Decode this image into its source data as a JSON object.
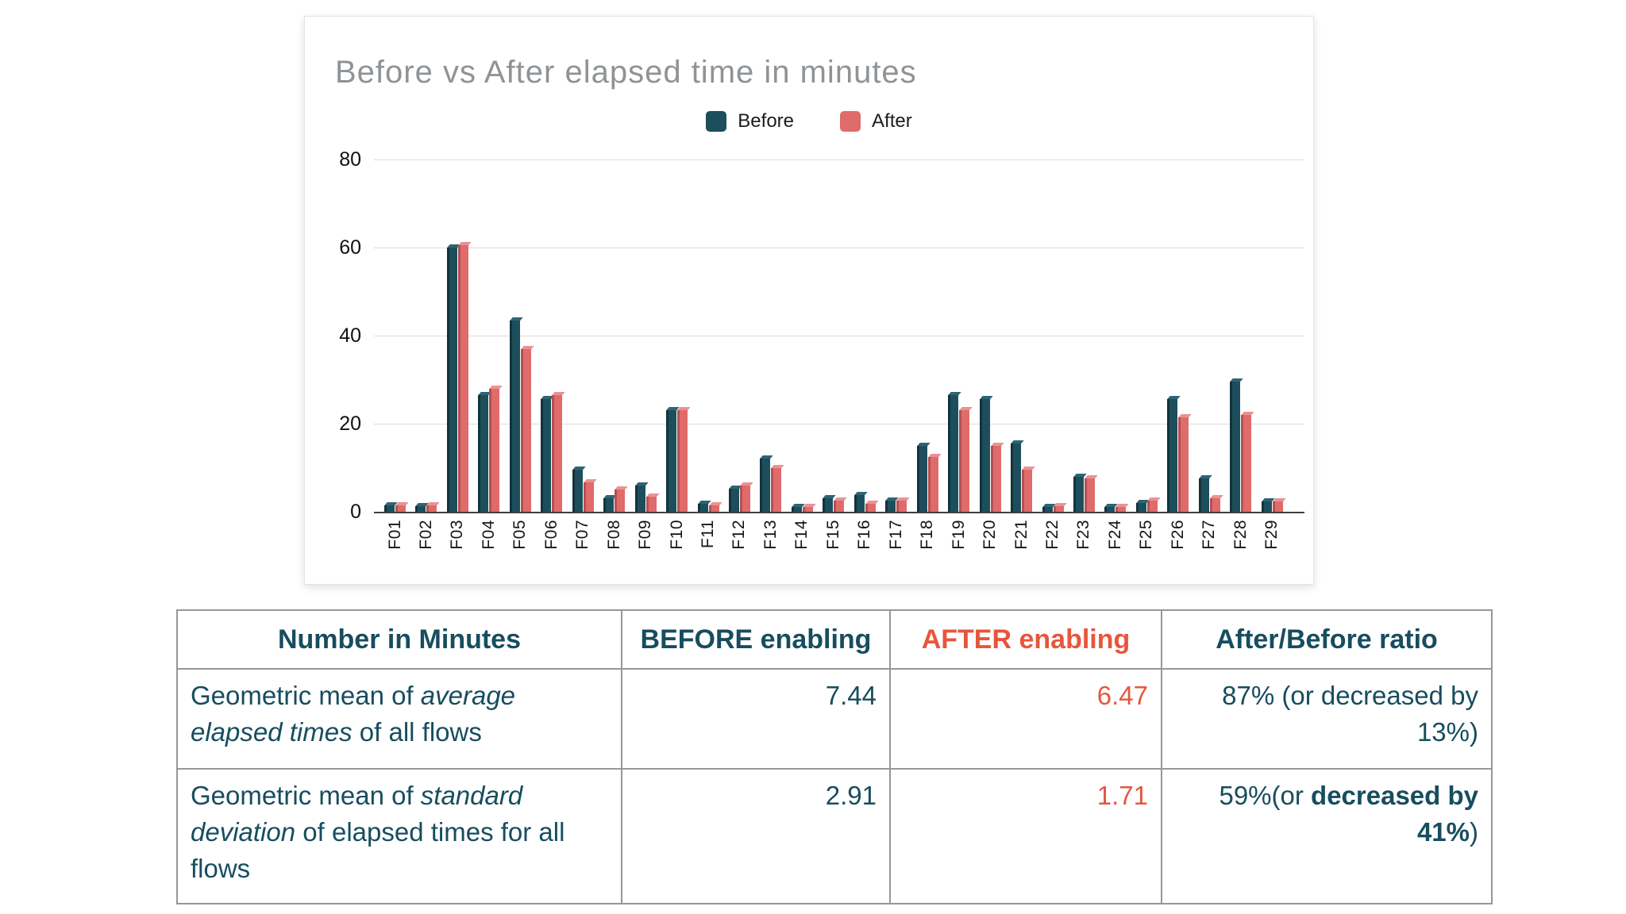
{
  "chart": {
    "title": "Before vs After elapsed time in minutes",
    "legend": [
      {
        "label": "Before",
        "color": "#1d4e5c",
        "edge": "#13333d",
        "cap": "#2e6474"
      },
      {
        "label": "After",
        "color": "#df6b6b",
        "edge": "#b35151",
        "cap": "#ea9292"
      }
    ]
  },
  "chart_data": {
    "type": "bar",
    "title": "Before vs After elapsed time in minutes",
    "xlabel": "",
    "ylabel": "",
    "ylim": [
      0,
      80
    ],
    "yticks": [
      80,
      60,
      40,
      20,
      0
    ],
    "grid": true,
    "legend_position": "top",
    "categories": [
      "F01",
      "F02",
      "F03",
      "F04",
      "F05",
      "F06",
      "F07",
      "F08",
      "F09",
      "F10",
      "F11",
      "F12",
      "F13",
      "F14",
      "F15",
      "F16",
      "F17",
      "F18",
      "F19",
      "F20",
      "F21",
      "F22",
      "F23",
      "F24",
      "F25",
      "F26",
      "F27",
      "F28",
      "F29"
    ],
    "series": [
      {
        "name": "Before",
        "values": [
          1.4,
          1.2,
          60,
          26.5,
          43.5,
          25.5,
          9.5,
          3,
          6,
          23,
          1.8,
          5.2,
          12,
          1,
          3,
          3.8,
          2.6,
          15,
          26.5,
          25.5,
          15.5,
          1,
          8,
          1,
          2,
          25.5,
          7.5,
          29.5,
          2.4
        ]
      },
      {
        "name": "After",
        "values": [
          1.4,
          1.5,
          60.5,
          28,
          37,
          26.5,
          6.7,
          5,
          3.5,
          23,
          1.4,
          6,
          10,
          1,
          2.5,
          1.8,
          2.6,
          12.5,
          23,
          15,
          9.5,
          1.2,
          7.5,
          1,
          2.5,
          21.5,
          3.1,
          22,
          2.4
        ]
      }
    ]
  },
  "table": {
    "headers": [
      {
        "label": "Number in Minutes"
      },
      {
        "label": "BEFORE enabling"
      },
      {
        "label": "AFTER enabling"
      },
      {
        "label": "After/Before ratio"
      }
    ],
    "rows": [
      {
        "label_pre": "Geometric mean of ",
        "label_italic": "average elapsed times",
        "label_post": " of all flows",
        "before": "7.44",
        "after": "6.47",
        "ratio_pre": "87% (or decreased by 13%)",
        "ratio_bold": "",
        "ratio_post": ""
      },
      {
        "label_pre": "Geometric mean of ",
        "label_italic": "standard deviation",
        "label_post": " of elapsed times for all flows",
        "before": "2.91",
        "after": "1.71",
        "ratio_pre": "59%(or ",
        "ratio_bold": "decreased by 41%",
        "ratio_post": ")"
      }
    ]
  },
  "colors": {
    "before": "#1d4e5c",
    "after": "#df6b6b",
    "title_gray": "#8f9396",
    "table_teal": "#174d5f",
    "table_red": "#e8553c",
    "value_red": "#e4573f",
    "gridline": "#dcdcdc",
    "axis_baseline": "#3f3f3f"
  }
}
